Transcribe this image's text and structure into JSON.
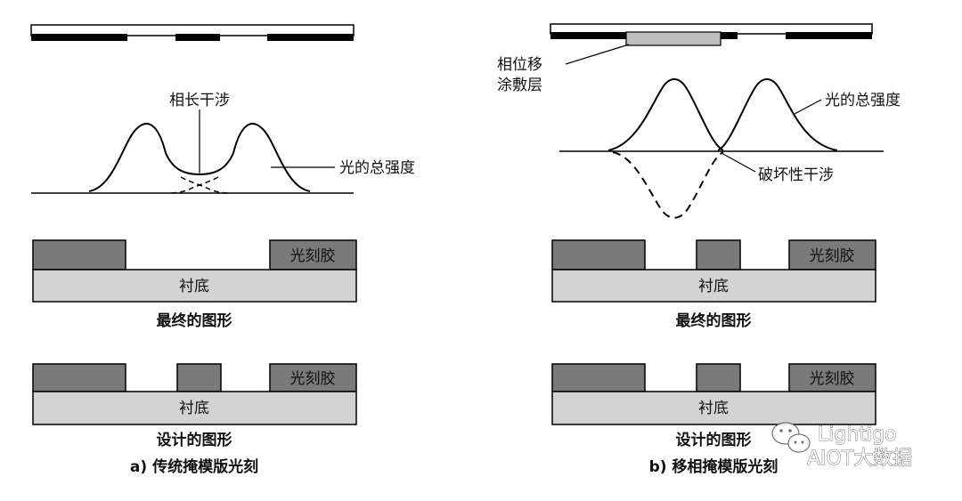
{
  "panel_a": {
    "interference_label": "相长干涉",
    "intensity_label": "光的总强度",
    "resist_label_1": "光刻胶",
    "substrate_label_1": "衬底",
    "result_caption": "最终的图形",
    "resist_label_2": "光刻胶",
    "substrate_label_2": "衬底",
    "design_caption": "设计的图形",
    "title": "a) 传统掩模版光刻"
  },
  "panel_b": {
    "coating_label_line1": "相位移",
    "coating_label_line2": "涂敷层",
    "intensity_label": "光的总强度",
    "interference_label": "破坏性干涉",
    "resist_label_1": "光刻胶",
    "substrate_label_1": "衬底",
    "result_caption": "最终的图形",
    "resist_label_2": "光刻胶",
    "substrate_label_2": "衬底",
    "design_caption": "设计的图形",
    "title": "b) 移相掩模版光刻"
  },
  "watermark": {
    "line1": "Lightigo",
    "line2": "AIOT大数据",
    "icon": "wechat-icon"
  },
  "colors": {
    "chrome": "#000000",
    "resist": "#7a7a7a",
    "substrate": "#d3d3d3",
    "phase_coating": "#bdbdbd"
  }
}
